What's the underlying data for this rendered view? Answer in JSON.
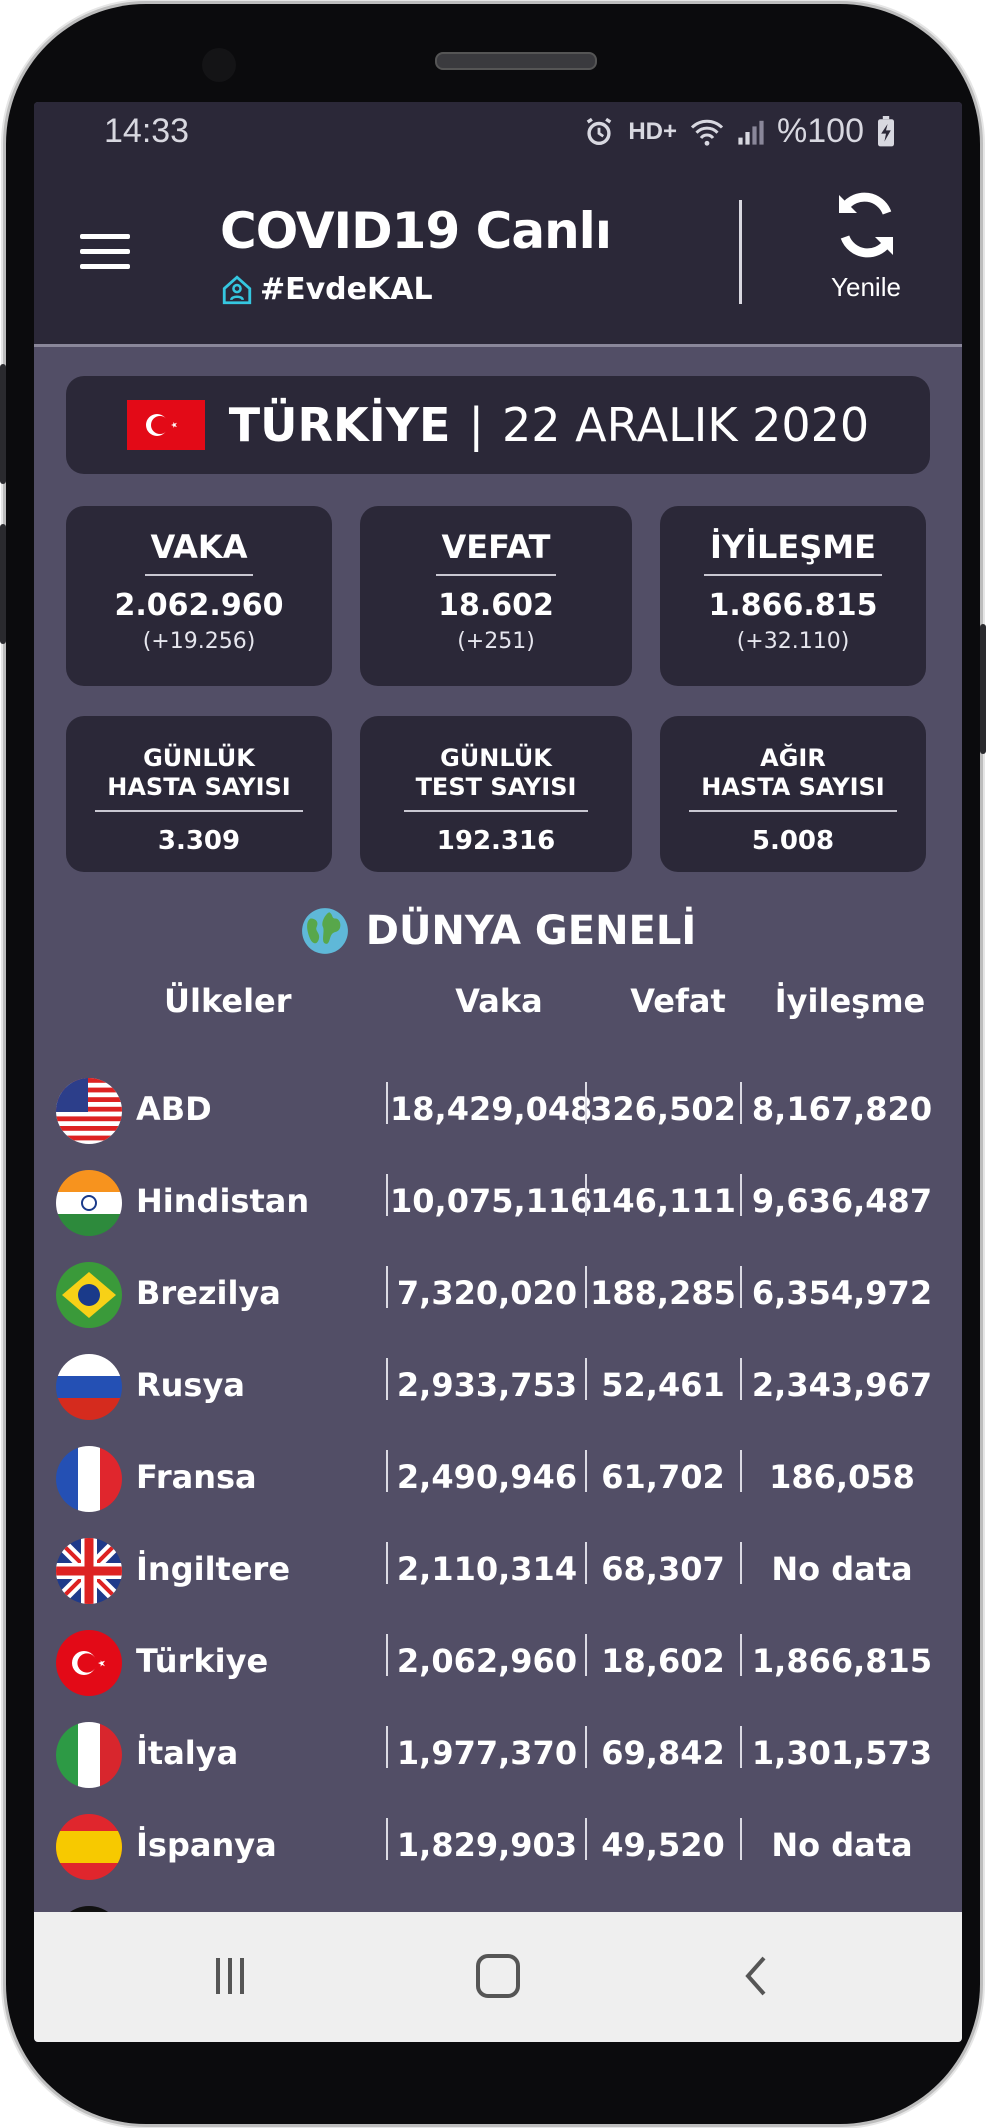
{
  "status": {
    "time": "14:33",
    "network": "HD+",
    "battery": "%100"
  },
  "header": {
    "title": "COVID19 Canlı",
    "tag": "#EvdeKAL",
    "refresh_label": "Yenile"
  },
  "country": {
    "name": "TÜRKİYE",
    "separator": "|",
    "date": "22 ARALIK 2020"
  },
  "stats": [
    {
      "title": "VAKA",
      "value": "2.062.960",
      "delta": "(+19.256)"
    },
    {
      "title": "VEFAT",
      "value": "18.602",
      "delta": "(+251)"
    },
    {
      "title": "İYİLEŞME",
      "value": "1.866.815",
      "delta": "(+32.110)"
    }
  ],
  "stats2": [
    {
      "title_line1": "GÜNLÜK",
      "title_line2": "HASTA SAYISI",
      "value": "3.309"
    },
    {
      "title_line1": "GÜNLÜK",
      "title_line2": "TEST SAYISI",
      "value": "192.316"
    },
    {
      "title_line1": "AĞIR",
      "title_line2": "HASTA SAYISI",
      "value": "5.008"
    }
  ],
  "world": {
    "title": "DÜNYA GENELİ",
    "columns": {
      "country": "Ülkeler",
      "cases": "Vaka",
      "deaths": "Vefat",
      "recovered": "İyileşme"
    },
    "rows": [
      {
        "name": "ABD",
        "cases": "18,429,048",
        "deaths": "326,502",
        "recovered": "8,167,820",
        "flag": "us-flag"
      },
      {
        "name": "Hindistan",
        "cases": "10,075,116",
        "deaths": "146,111",
        "recovered": "9,636,487",
        "flag": "india-flag"
      },
      {
        "name": "Brezilya",
        "cases": "7,320,020",
        "deaths": "188,285",
        "recovered": "6,354,972",
        "flag": "brazil-flag"
      },
      {
        "name": "Rusya",
        "cases": "2,933,753",
        "deaths": "52,461",
        "recovered": "2,343,967",
        "flag": "russia-flag"
      },
      {
        "name": "Fransa",
        "cases": "2,490,946",
        "deaths": "61,702",
        "recovered": "186,058",
        "flag": "france-flag"
      },
      {
        "name": "İngiltere",
        "cases": "2,110,314",
        "deaths": "68,307",
        "recovered": "No data",
        "flag": "uk-flag"
      },
      {
        "name": "Türkiye",
        "cases": "2,062,960",
        "deaths": "18,602",
        "recovered": "1,866,815",
        "flag": "turkey-flag"
      },
      {
        "name": "İtalya",
        "cases": "1,977,370",
        "deaths": "69,842",
        "recovered": "1,301,573",
        "flag": "italy-flag"
      },
      {
        "name": "İspanya",
        "cases": "1,829,903",
        "deaths": "49,520",
        "recovered": "No data",
        "flag": "spain-flag"
      }
    ]
  },
  "colors": {
    "screen_bg": "#524e66",
    "card_bg": "#2b2838",
    "text": "#ffffff",
    "navbar_bg": "#efefef"
  },
  "nav": {
    "icons": [
      "recents-icon",
      "home-icon",
      "back-icon"
    ]
  }
}
